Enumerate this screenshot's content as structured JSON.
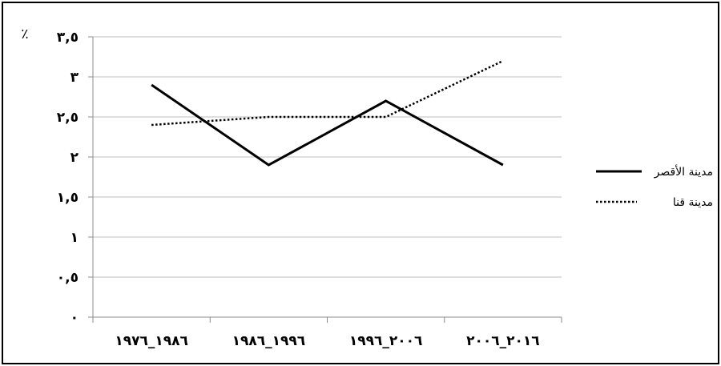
{
  "chart_data": {
    "type": "line",
    "title": "",
    "xlabel": "",
    "ylabel": "٪",
    "categories": [
      "١٩٨٦_١٩٧٦",
      "١٩٩٦_١٩٨٦",
      "٢٠٠٦_١٩٩٦",
      "٢٠١٦_٢٠٠٦"
    ],
    "y_ticks": [
      {
        "value": 0,
        "label": "٠"
      },
      {
        "value": 0.5,
        "label": "٠,٥"
      },
      {
        "value": 1,
        "label": "١"
      },
      {
        "value": 1.5,
        "label": "١,٥"
      },
      {
        "value": 2,
        "label": "٢"
      },
      {
        "value": 2.5,
        "label": "٢,٥"
      },
      {
        "value": 3,
        "label": "٣"
      },
      {
        "value": 3.5,
        "label": "٣,٥"
      }
    ],
    "ylim": [
      0,
      3.5
    ],
    "grid": true,
    "legend_position": "right",
    "series": [
      {
        "name": "مدينة الأقصر",
        "style": "solid",
        "color": "#000000",
        "values": [
          2.9,
          1.9,
          2.7,
          1.9
        ]
      },
      {
        "name": "مدينة قنا",
        "style": "dotted",
        "color": "#000000",
        "values": [
          2.4,
          2.5,
          2.5,
          3.2
        ]
      }
    ]
  }
}
